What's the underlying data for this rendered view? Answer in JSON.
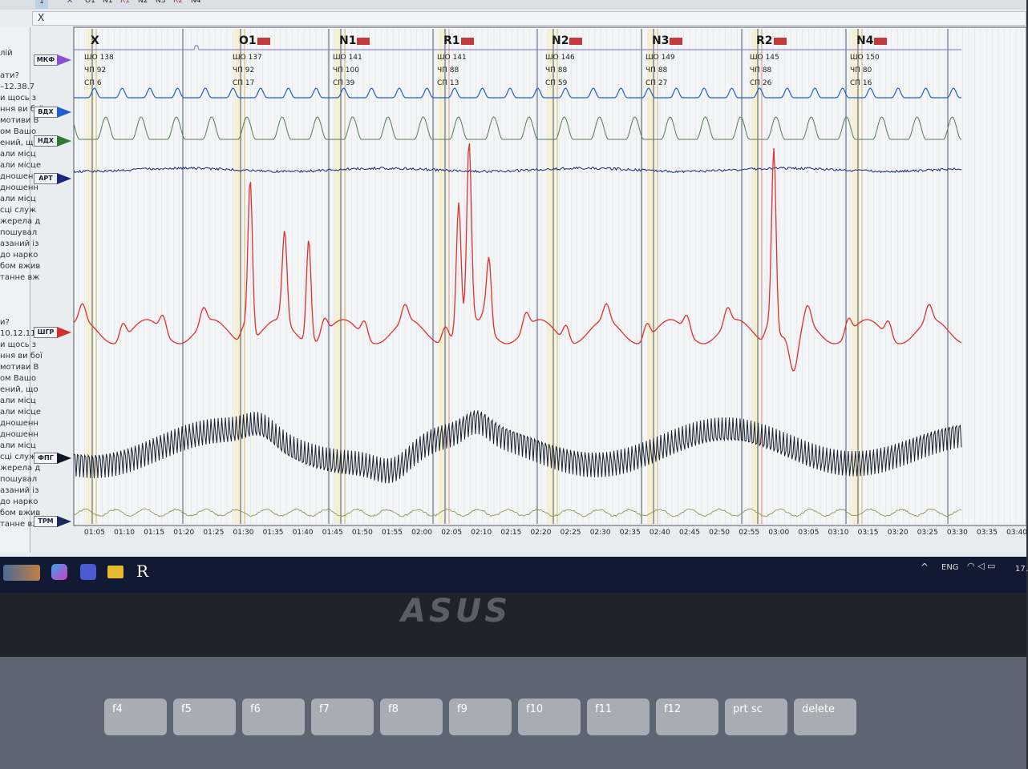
{
  "tabs": {
    "page": "1",
    "markers": [
      {
        "label": "X",
        "color": "#1b2a5a"
      },
      {
        "label": "O1",
        "color": "#222"
      },
      {
        "label": "N1",
        "color": "#222"
      },
      {
        "label": "R1",
        "color": "#b03030"
      },
      {
        "label": "N2",
        "color": "#222"
      },
      {
        "label": "N3",
        "color": "#222"
      },
      {
        "label": "R2",
        "color": "#b03030"
      },
      {
        "label": "N4",
        "color": "#222"
      }
    ]
  },
  "current_question": "X",
  "left_panel": [
    "лій",
    "",
    "ати?",
    "–12.38.7",
    "и щось з",
    "ння ви бої",
    "мотиви В",
    "ом Вашо",
    "ений, що",
    "али місц",
    "али місце",
    "дношенн",
    "дношенн",
    "али місц",
    "сці служ",
    "жерела д",
    "пошувал",
    "азаний із",
    "до нарко",
    "бом вжив",
    "танне вж",
    "",
    "",
    "",
    "и?",
    "10.12.11",
    "и щось з",
    "ння ви бої",
    "мотиви В",
    "ом Вашо",
    "ений, що",
    "али місц",
    "али місце",
    "дношенн",
    "дношенн",
    "али місц",
    "сці служ",
    "жерела д",
    "пошувал",
    "азаний із",
    "до нарко",
    "бом вжив",
    "танне вж"
  ],
  "channels": [
    {
      "label": "МКФ",
      "color": "#8a4fd6"
    },
    {
      "label": "ВДХ",
      "color": "#1f5fd0"
    },
    {
      "label": "НДХ",
      "color": "#2f7a3a"
    },
    {
      "label": "АРТ",
      "color": "#1a2a7a"
    },
    {
      "label": "ШГР",
      "color": "#d03030"
    },
    {
      "label": "ФПГ",
      "color": "#101828"
    },
    {
      "label": "ТРМ",
      "color": "#1a2a5a"
    }
  ],
  "trace_colors": {
    "mkf": "#8070d0",
    "vdh": "#2060d0",
    "ndh": "#5a7a5a",
    "art": "#1a2a80",
    "shgr": "#e03030",
    "fpg": "#1a2030",
    "trm": "#8a8a40"
  },
  "question_marks": [
    {
      "label": "X",
      "sho": "ШО 138",
      "chp": "ЧП 92",
      "sp": "СП 6",
      "flag": false
    },
    {
      "label": "O1",
      "sho": "ШО 137",
      "chp": "ЧП 92",
      "sp": "СП 17",
      "flag": true
    },
    {
      "label": "N1",
      "sho": "ШО 141",
      "chp": "ЧП 100",
      "sp": "СП 39",
      "flag": true
    },
    {
      "label": "R1",
      "sho": "ШО 141",
      "chp": "ЧП 88",
      "sp": "СП 13",
      "flag": true
    },
    {
      "label": "N2",
      "sho": "ШО 146",
      "chp": "ЧП 88",
      "sp": "СП 59",
      "flag": true
    },
    {
      "label": "N3",
      "sho": "ШО 149",
      "chp": "ЧП 88",
      "sp": "СП 27",
      "flag": true
    },
    {
      "label": "R2",
      "sho": "ШО 145",
      "chp": "ЧП 88",
      "sp": "СП 26",
      "flag": true
    },
    {
      "label": "N4",
      "sho": "ШО 150",
      "chp": "ЧП 80",
      "sp": "СП 16",
      "flag": true
    }
  ],
  "time_ticks": [
    "01:05",
    "01:10",
    "01:15",
    "01:20",
    "01:25",
    "01:30",
    "01:35",
    "01:40",
    "01:45",
    "01:50",
    "01:55",
    "02:00",
    "02:05",
    "02:10",
    "02:15",
    "02:20",
    "02:25",
    "02:30",
    "02:35",
    "02:40",
    "02:45",
    "02:50",
    "02:55",
    "03:00",
    "03:05",
    "03:10",
    "03:15",
    "03:20",
    "03:25",
    "03:30",
    "03:35",
    "03:40"
  ],
  "taskbar": {
    "lang": "ENG",
    "clock": "17."
  },
  "laptop_brand": "ASUS",
  "keys": [
    "f4",
    "f5",
    "f6",
    "f7",
    "f8",
    "f9",
    "f10",
    "f11",
    "f12",
    "prt sc",
    "delete"
  ]
}
